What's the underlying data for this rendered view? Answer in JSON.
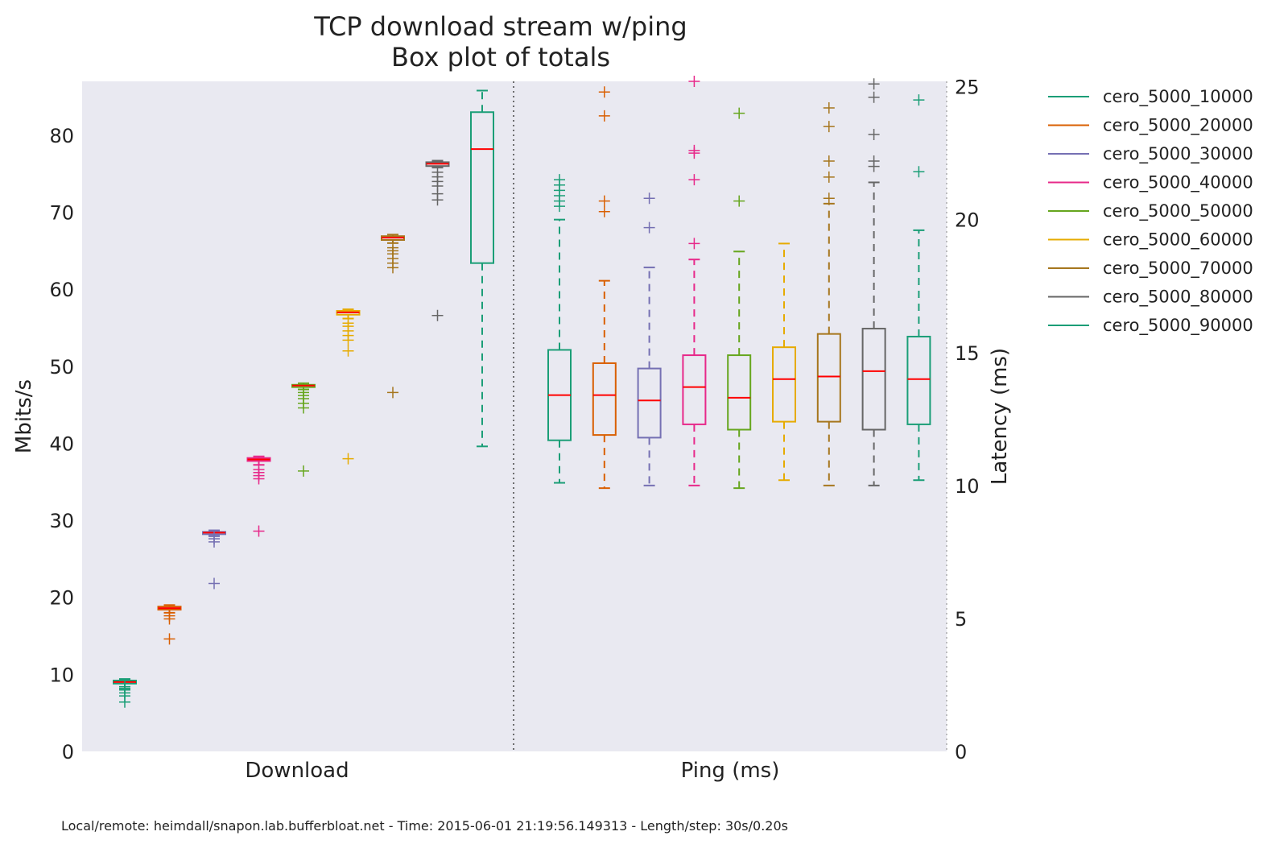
{
  "chart_data": {
    "type": "box",
    "title": "TCP download stream w/ping",
    "subtitle": "Box plot of totals",
    "footer": "Local/remote: heimdall/snapon.lab.bufferbloat.net - Time: 2015-06-01 21:19:56.149313 - Length/step: 30s/0.20s",
    "groups": [
      "Download",
      "Ping (ms)"
    ],
    "left_axis": {
      "label": "Mbits/s",
      "ylim": [
        0,
        87
      ],
      "ticks": [
        0,
        10,
        20,
        30,
        40,
        50,
        60,
        70,
        80
      ]
    },
    "right_axis": {
      "label": "Latency (ms)",
      "ylim": [
        0,
        25.2
      ],
      "ticks": [
        0,
        5,
        10,
        15,
        20,
        25
      ]
    },
    "legend_position": "outside-right",
    "colors": {
      "background": "#e9e9f1",
      "median": "#ff0000",
      "divider": "#444444"
    },
    "series": [
      {
        "name": "cero_5000_10000",
        "color": "#1b9e77",
        "download": {
          "whislo": 8.0,
          "q1": 8.8,
          "med": 9.0,
          "q3": 9.2,
          "whishi": 9.4,
          "fliers": [
            6.4,
            7.2,
            7.6,
            8.2,
            8.4
          ]
        },
        "ping": {
          "whislo": 10.1,
          "q1": 11.7,
          "med": 13.4,
          "q3": 15.1,
          "whishi": 20.0,
          "fliers": [
            20.5,
            20.7,
            20.9,
            21.1,
            21.3,
            21.5
          ]
        }
      },
      {
        "name": "cero_5000_20000",
        "color": "#d95f02",
        "download": {
          "whislo": 18.0,
          "q1": 18.4,
          "med": 18.6,
          "q3": 18.8,
          "whishi": 19.0,
          "fliers": [
            14.6,
            17.2,
            17.6
          ]
        },
        "ping": {
          "whislo": 9.9,
          "q1": 11.9,
          "med": 13.4,
          "q3": 14.6,
          "whishi": 17.7,
          "fliers": [
            20.3,
            20.7,
            23.9,
            24.8
          ]
        }
      },
      {
        "name": "cero_5000_30000",
        "color": "#7570b3",
        "download": {
          "whislo": 28.0,
          "q1": 28.2,
          "med": 28.4,
          "q3": 28.5,
          "whishi": 28.7,
          "fliers": [
            21.8,
            27.2,
            27.6,
            27.9
          ]
        },
        "ping": {
          "whislo": 10.0,
          "q1": 11.8,
          "med": 13.2,
          "q3": 14.4,
          "whishi": 18.2,
          "fliers": [
            19.7,
            20.8
          ]
        }
      },
      {
        "name": "cero_5000_40000",
        "color": "#e7298a",
        "download": {
          "whislo": 37.2,
          "q1": 37.7,
          "med": 37.9,
          "q3": 38.1,
          "whishi": 38.3,
          "fliers": [
            28.6,
            35.4,
            35.8,
            36.2,
            36.6
          ]
        },
        "ping": {
          "whislo": 10.0,
          "q1": 12.3,
          "med": 13.7,
          "q3": 14.9,
          "whishi": 18.5,
          "fliers": [
            19.1,
            21.5,
            22.5,
            22.6,
            25.2
          ]
        }
      },
      {
        "name": "cero_5000_50000",
        "color": "#66a61e",
        "download": {
          "whislo": 47.0,
          "q1": 47.3,
          "med": 47.5,
          "q3": 47.6,
          "whishi": 47.8,
          "fliers": [
            36.4,
            44.6,
            45.2,
            45.8,
            46.2,
            46.6
          ]
        },
        "ping": {
          "whislo": 9.9,
          "q1": 12.1,
          "med": 13.3,
          "q3": 14.9,
          "whishi": 18.8,
          "fliers": [
            20.7,
            24.0
          ]
        }
      },
      {
        "name": "cero_5000_60000",
        "color": "#e6ab02",
        "download": {
          "whislo": 56.2,
          "q1": 56.7,
          "med": 57.0,
          "q3": 57.2,
          "whishi": 57.4,
          "fliers": [
            38.0,
            52.0,
            53.4,
            54.0,
            54.6,
            55.2,
            55.6
          ]
        },
        "ping": {
          "whislo": 10.2,
          "q1": 12.4,
          "med": 14.0,
          "q3": 15.2,
          "whishi": 19.1,
          "fliers": []
        }
      },
      {
        "name": "cero_5000_70000",
        "color": "#a6761d",
        "download": {
          "whislo": 66.0,
          "q1": 66.4,
          "med": 66.7,
          "q3": 66.9,
          "whishi": 67.1,
          "fliers": [
            46.6,
            62.8,
            63.4,
            64.0,
            64.6,
            65.0,
            65.4
          ]
        },
        "ping": {
          "whislo": 10.0,
          "q1": 12.4,
          "med": 14.1,
          "q3": 15.7,
          "whishi": 20.6,
          "fliers": [
            20.8,
            21.6,
            22.2,
            23.5,
            24.2
          ]
        }
      },
      {
        "name": "cero_5000_80000",
        "color": "#666666",
        "download": {
          "whislo": 75.8,
          "q1": 76.0,
          "med": 76.3,
          "q3": 76.5,
          "whishi": 76.7,
          "fliers": [
            56.6,
            71.6,
            72.4,
            73.4,
            74.0,
            74.6,
            75.2
          ]
        },
        "ping": {
          "whislo": 10.0,
          "q1": 12.1,
          "med": 14.3,
          "q3": 15.9,
          "whishi": 21.4,
          "fliers": [
            22.0,
            22.2,
            23.2,
            24.6,
            25.1
          ]
        }
      },
      {
        "name": "cero_5000_90000",
        "color": "#1b9e77",
        "download": {
          "whislo": 39.6,
          "q1": 63.4,
          "med": 78.2,
          "q3": 83.0,
          "whishi": 85.8,
          "fliers": []
        },
        "ping": {
          "whislo": 10.2,
          "q1": 12.3,
          "med": 14.0,
          "q3": 15.6,
          "whishi": 19.6,
          "fliers": [
            21.8,
            24.5
          ]
        }
      }
    ]
  }
}
